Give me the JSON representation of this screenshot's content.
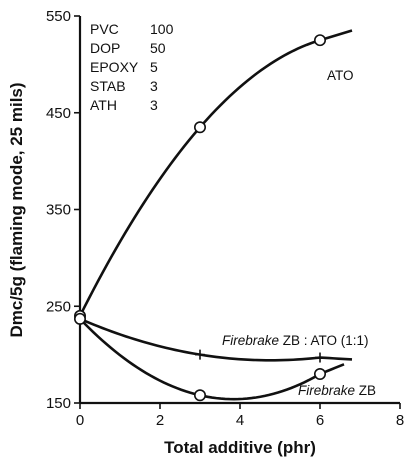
{
  "chart_data": {
    "type": "line",
    "xlabel": "Total additive (phr)",
    "ylabel": "Dmc/5g (flaming mode, 25 mils)",
    "xlim": [
      0,
      8
    ],
    "ylim": [
      150,
      550
    ],
    "x_ticks": [
      "0",
      "2",
      "4",
      "6",
      "8"
    ],
    "y_ticks": [
      "150",
      "250",
      "350",
      "450",
      "550"
    ],
    "grid": false,
    "legend": "none",
    "formulation": [
      {
        "name": "PVC",
        "value": "100"
      },
      {
        "name": "DOP",
        "value": "50"
      },
      {
        "name": "EPOXY",
        "value": "5"
      },
      {
        "name": "STAB",
        "value": "3"
      },
      {
        "name": "ATH",
        "value": "3"
      }
    ],
    "series": [
      {
        "name": "ATO",
        "marker": "circle",
        "x": [
          0,
          3,
          6
        ],
        "values": [
          240,
          435,
          525
        ],
        "curve_end": [
          6.8,
          535
        ]
      },
      {
        "name_prefix": "Firebrake",
        "name_suffix": " ZB : ATO (1:1)",
        "marker": "plus",
        "x": [
          0,
          3,
          6
        ],
        "values": [
          237,
          200,
          197
        ],
        "curve_end": [
          6.8,
          195
        ]
      },
      {
        "name_prefix": "Firebrake",
        "name_suffix": " ZB",
        "marker": "circle",
        "x": [
          0,
          3,
          6
        ],
        "values": [
          237,
          158,
          180
        ],
        "curve_end": [
          6.6,
          190
        ]
      }
    ]
  }
}
